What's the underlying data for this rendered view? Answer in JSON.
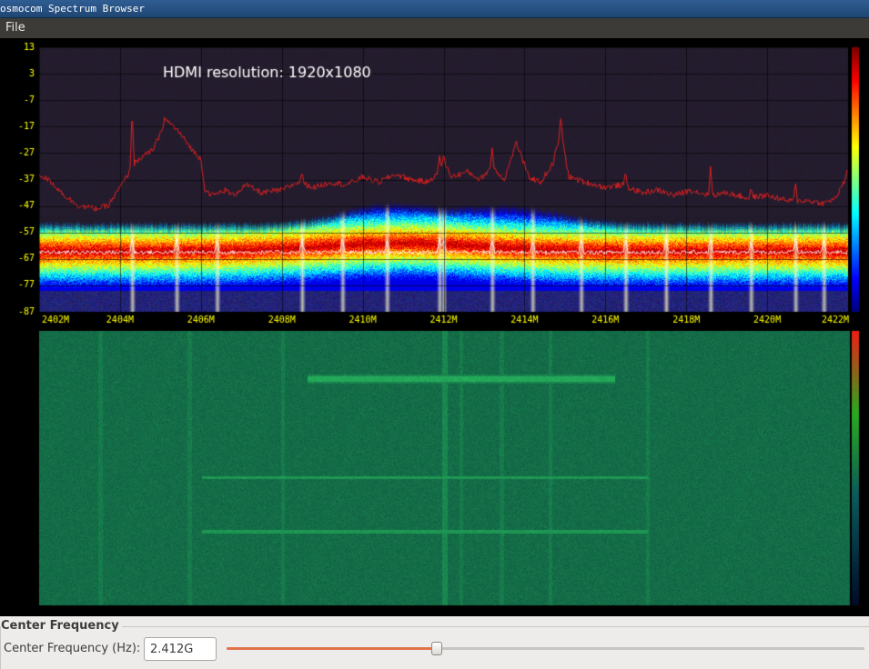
{
  "window": {
    "title": "osmocom Spectrum Browser"
  },
  "menu": {
    "items": [
      "File"
    ]
  },
  "spectrum": {
    "overlay_text": "HDMI resolution: 1920x1080",
    "y_ticks": [
      "13",
      "3",
      "-7",
      "-17",
      "-27",
      "-37",
      "-47",
      "-57",
      "-67",
      "-77",
      "-87"
    ],
    "x_ticks": [
      "2402M",
      "2404M",
      "2406M",
      "2408M",
      "2410M",
      "2412M",
      "2414M",
      "2416M",
      "2418M",
      "2420M",
      "2422M"
    ],
    "tick_color": "#ffff00",
    "trace_color": "#e02020"
  },
  "controls": {
    "group_title": "Center Frequency",
    "center_freq_label": "Center Frequency (Hz):",
    "center_freq_value": "2.412G",
    "slider_level": 0.33,
    "accent_color": "#e0734a"
  }
}
